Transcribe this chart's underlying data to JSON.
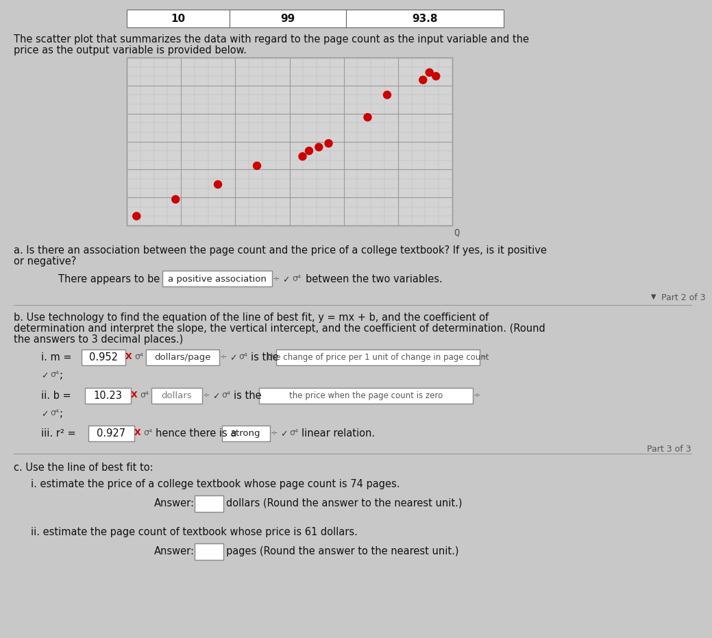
{
  "table_row": [
    "10",
    "99",
    "93.8"
  ],
  "scatter_x": [
    3,
    15,
    28,
    40,
    54,
    56,
    59,
    62,
    74,
    80,
    91,
    93,
    95
  ],
  "scatter_y": [
    5,
    14,
    22,
    32,
    37,
    40,
    42,
    44,
    58,
    70,
    78,
    82,
    80
  ],
  "scatter_color": "#cc0000",
  "scatter_bg": "#d4d4d4",
  "bg_color": "#c8c8c8",
  "text_color": "#111111",
  "line1": "The scatter plot that summarizes the data with regard to the page count as the input variable and the",
  "line2": "price as the output variable is provided below.",
  "part_a_label": "a. Is there an association between the page count and the price of a college textbook? If yes, is it positive",
  "part_a_label2": "or negative?",
  "part_a_answer": "There appears to be",
  "part_a_box": "a positive association",
  "part_a_end": "between the two variables.",
  "part2of3": "Part 2 of 3",
  "m_value": "0.952",
  "m_units_box": "dollars/page",
  "m_desc_box": "the change of price per 1 unit of change in page count",
  "b_value": "10.23",
  "b_units_box": "dollars",
  "b_desc_box": "the price when the page count is zero",
  "r2_value": "0.927",
  "r2_hence": "hence there is a",
  "r2_strength_box": "strong",
  "r2_end": "linear relation.",
  "part3of3": "Part 3 of 3",
  "part_c_label": "c. Use the line of best fit to:",
  "c_i_label": "i. estimate the price of a college textbook whose page count is 74 pages.",
  "c_i_answer": "Answer:",
  "c_i_end": "dollars (Round the answer to the nearest unit.)",
  "c_ii_label": "ii. estimate the page count of textbook whose price is 61 dollars.",
  "c_ii_answer": "Answer:",
  "c_ii_end": "pages (Round the answer to the nearest unit.)"
}
